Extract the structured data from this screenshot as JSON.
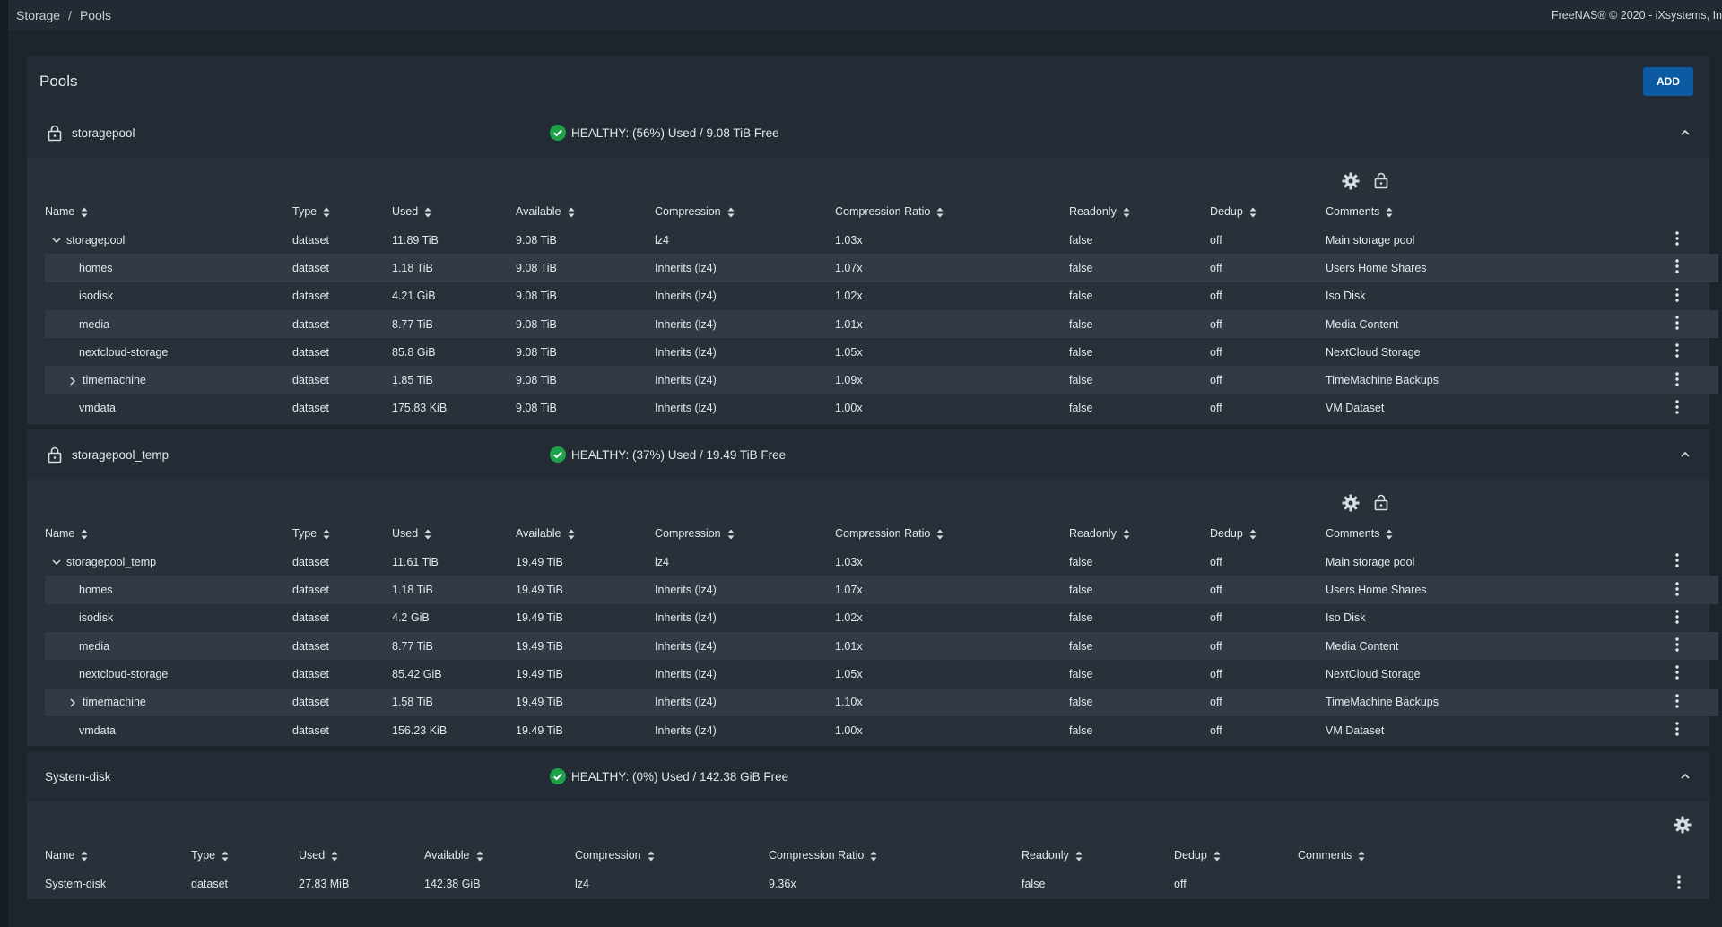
{
  "breadcrumb": [
    "Storage",
    "Pools"
  ],
  "copyright": "FreeNAS® © 2020 - iXsystems, In",
  "panel": {
    "title": "Pools",
    "add_label": "ADD"
  },
  "columns": [
    "Name",
    "Type",
    "Used",
    "Available",
    "Compression",
    "Compression Ratio",
    "Readonly",
    "Dedup",
    "Comments"
  ],
  "pools": [
    {
      "name": "storagepool",
      "status": "HEALTHY: (56%) Used / 9.08 TiB Free",
      "rows": [
        {
          "name": "storagepool",
          "type": "dataset",
          "used": "11.89 TiB",
          "available": "9.08 TiB",
          "compression": "lz4",
          "ratio": "1.03x",
          "readonly": "false",
          "dedup": "off",
          "comments": "Main storage pool"
        },
        {
          "name": "homes",
          "type": "dataset",
          "used": "1.18 TiB",
          "available": "9.08 TiB",
          "compression": "Inherits (lz4)",
          "ratio": "1.07x",
          "readonly": "false",
          "dedup": "off",
          "comments": "Users Home Shares"
        },
        {
          "name": "isodisk",
          "type": "dataset",
          "used": "4.21 GiB",
          "available": "9.08 TiB",
          "compression": "Inherits (lz4)",
          "ratio": "1.02x",
          "readonly": "false",
          "dedup": "off",
          "comments": "Iso Disk"
        },
        {
          "name": "media",
          "type": "dataset",
          "used": "8.77 TiB",
          "available": "9.08 TiB",
          "compression": "Inherits (lz4)",
          "ratio": "1.01x",
          "readonly": "false",
          "dedup": "off",
          "comments": "Media Content"
        },
        {
          "name": "nextcloud-storage",
          "type": "dataset",
          "used": "85.8 GiB",
          "available": "9.08 TiB",
          "compression": "Inherits (lz4)",
          "ratio": "1.05x",
          "readonly": "false",
          "dedup": "off",
          "comments": "NextCloud Storage"
        },
        {
          "name": "timemachine",
          "type": "dataset",
          "used": "1.85 TiB",
          "available": "9.08 TiB",
          "compression": "Inherits (lz4)",
          "ratio": "1.09x",
          "readonly": "false",
          "dedup": "off",
          "comments": "TimeMachine Backups"
        },
        {
          "name": "vmdata",
          "type": "dataset",
          "used": "175.83 KiB",
          "available": "9.08 TiB",
          "compression": "Inherits (lz4)",
          "ratio": "1.00x",
          "readonly": "false",
          "dedup": "off",
          "comments": "VM Dataset"
        }
      ]
    },
    {
      "name": "storagepool_temp",
      "status": "HEALTHY: (37%) Used / 19.49 TiB Free",
      "rows": [
        {
          "name": "storagepool_temp",
          "type": "dataset",
          "used": "11.61 TiB",
          "available": "19.49 TiB",
          "compression": "lz4",
          "ratio": "1.03x",
          "readonly": "false",
          "dedup": "off",
          "comments": "Main storage pool"
        },
        {
          "name": "homes",
          "type": "dataset",
          "used": "1.18 TiB",
          "available": "19.49 TiB",
          "compression": "Inherits (lz4)",
          "ratio": "1.07x",
          "readonly": "false",
          "dedup": "off",
          "comments": "Users Home Shares"
        },
        {
          "name": "isodisk",
          "type": "dataset",
          "used": "4.2 GiB",
          "available": "19.49 TiB",
          "compression": "Inherits (lz4)",
          "ratio": "1.02x",
          "readonly": "false",
          "dedup": "off",
          "comments": "Iso Disk"
        },
        {
          "name": "media",
          "type": "dataset",
          "used": "8.77 TiB",
          "available": "19.49 TiB",
          "compression": "Inherits (lz4)",
          "ratio": "1.01x",
          "readonly": "false",
          "dedup": "off",
          "comments": "Media Content"
        },
        {
          "name": "nextcloud-storage",
          "type": "dataset",
          "used": "85.42 GiB",
          "available": "19.49 TiB",
          "compression": "Inherits (lz4)",
          "ratio": "1.05x",
          "readonly": "false",
          "dedup": "off",
          "comments": "NextCloud Storage"
        },
        {
          "name": "timemachine",
          "type": "dataset",
          "used": "1.58 TiB",
          "available": "19.49 TiB",
          "compression": "Inherits (lz4)",
          "ratio": "1.10x",
          "readonly": "false",
          "dedup": "off",
          "comments": "TimeMachine Backups"
        },
        {
          "name": "vmdata",
          "type": "dataset",
          "used": "156.23 KiB",
          "available": "19.49 TiB",
          "compression": "Inherits (lz4)",
          "ratio": "1.00x",
          "readonly": "false",
          "dedup": "off",
          "comments": "VM Dataset"
        }
      ]
    },
    {
      "name": "System-disk",
      "status": "HEALTHY: (0%) Used / 142.38 GiB Free",
      "rows": [
        {
          "name": "System-disk",
          "type": "dataset",
          "used": "27.83 MiB",
          "available": "142.38 GiB",
          "compression": "lz4",
          "ratio": "9.36x",
          "readonly": "false",
          "dedup": "off",
          "comments": ""
        }
      ]
    }
  ],
  "colors": {
    "accent": "#0b5aa2",
    "healthy": "#1fa14b"
  }
}
